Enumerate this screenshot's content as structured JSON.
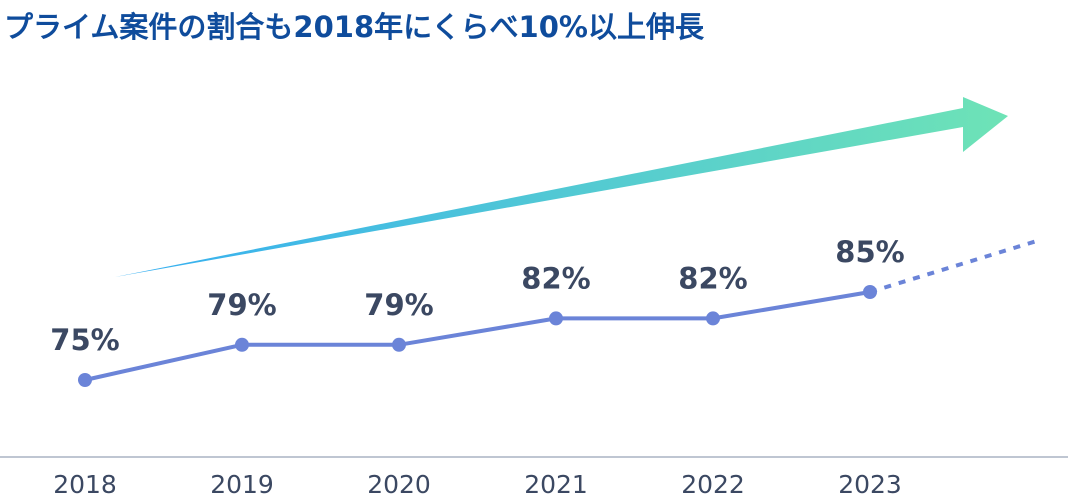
{
  "chart_data": {
    "type": "line",
    "title": "プライム案件の割合も2018年にくらべ10%以上伸長",
    "categories": [
      "2018",
      "2019",
      "2020",
      "2021",
      "2022",
      "2023"
    ],
    "values": [
      75,
      79,
      79,
      82,
      82,
      85
    ],
    "value_labels": [
      "75%",
      "79%",
      "79%",
      "82%",
      "82%",
      "85%"
    ],
    "color": "#6b84d8"
  }
}
